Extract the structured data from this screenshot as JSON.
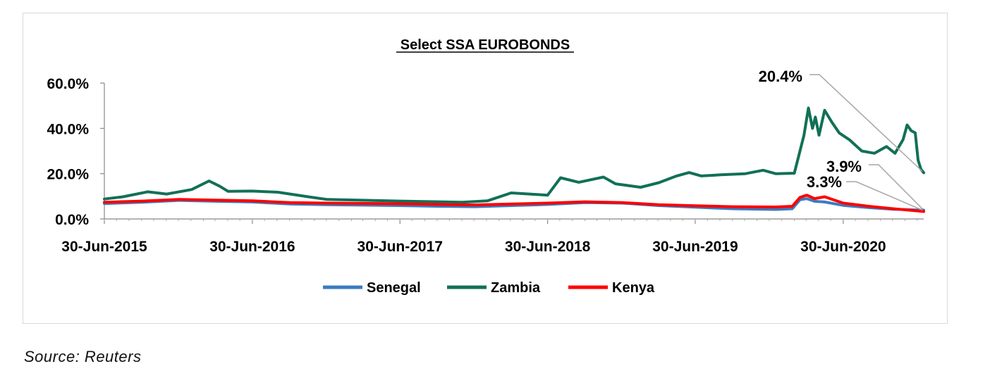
{
  "chart_data": {
    "type": "line",
    "title": "Select SSA EUROBONDS",
    "y_ticks": [
      "0.0%",
      "20.0%",
      "40.0%",
      "60.0%"
    ],
    "y_tick_values": [
      0,
      20,
      40,
      60
    ],
    "ylim": [
      0,
      60
    ],
    "x_ticks": [
      "30-Jun-2015",
      "30-Jun-2016",
      "30-Jun-2017",
      "30-Jun-2018",
      "30-Jun-2019",
      "30-Jun-2020"
    ],
    "x_tick_dates": [
      "2015-06-30",
      "2016-06-30",
      "2017-06-30",
      "2018-06-30",
      "2019-06-30",
      "2020-06-30"
    ],
    "xlim": [
      "2015-06-30",
      "2021-01-15"
    ],
    "legend_position": "bottom",
    "grid": false,
    "series": [
      {
        "name": "Senegal",
        "color": "#3a7cc0",
        "points": [
          [
            "2015-06-30",
            6.8
          ],
          [
            "2015-10-01",
            7.4
          ],
          [
            "2016-01-01",
            8.2
          ],
          [
            "2016-04-01",
            7.8
          ],
          [
            "2016-07-01",
            7.5
          ],
          [
            "2016-10-01",
            6.6
          ],
          [
            "2017-01-01",
            6.3
          ],
          [
            "2017-06-30",
            5.9
          ],
          [
            "2017-10-01",
            5.6
          ],
          [
            "2018-01-01",
            5.4
          ],
          [
            "2018-04-01",
            5.9
          ],
          [
            "2018-06-30",
            6.4
          ],
          [
            "2018-10-01",
            7.2
          ],
          [
            "2019-01-01",
            7.0
          ],
          [
            "2019-04-01",
            5.9
          ],
          [
            "2019-06-30",
            5.2
          ],
          [
            "2019-10-01",
            4.5
          ],
          [
            "2020-01-15",
            4.2
          ],
          [
            "2020-02-25",
            4.5
          ],
          [
            "2020-03-15",
            8.5
          ],
          [
            "2020-04-01",
            9.0
          ],
          [
            "2020-04-20",
            7.8
          ],
          [
            "2020-05-15",
            7.5
          ],
          [
            "2020-06-30",
            6.0
          ],
          [
            "2020-09-01",
            5.0
          ],
          [
            "2020-11-01",
            4.3
          ],
          [
            "2021-01-15",
            3.9
          ]
        ]
      },
      {
        "name": "Zambia",
        "color": "#127056",
        "points": [
          [
            "2015-06-30",
            8.8
          ],
          [
            "2015-08-15",
            9.8
          ],
          [
            "2015-10-15",
            12.0
          ],
          [
            "2015-12-01",
            11.0
          ],
          [
            "2016-02-01",
            13.0
          ],
          [
            "2016-03-15",
            16.8
          ],
          [
            "2016-04-10",
            14.5
          ],
          [
            "2016-05-01",
            12.2
          ],
          [
            "2016-06-30",
            12.3
          ],
          [
            "2016-09-01",
            11.8
          ],
          [
            "2016-11-15",
            9.8
          ],
          [
            "2017-01-01",
            8.6
          ],
          [
            "2017-06-30",
            7.9
          ],
          [
            "2017-12-01",
            7.4
          ],
          [
            "2018-02-01",
            8.0
          ],
          [
            "2018-04-01",
            11.5
          ],
          [
            "2018-06-30",
            10.5
          ],
          [
            "2018-08-01",
            18.2
          ],
          [
            "2018-09-15",
            16.2
          ],
          [
            "2018-11-15",
            18.5
          ],
          [
            "2018-12-15",
            15.5
          ],
          [
            "2019-02-15",
            14.0
          ],
          [
            "2019-04-01",
            16.0
          ],
          [
            "2019-05-15",
            19.0
          ],
          [
            "2019-06-15",
            20.5
          ],
          [
            "2019-07-15",
            19.0
          ],
          [
            "2019-09-01",
            19.5
          ],
          [
            "2019-11-01",
            20.0
          ],
          [
            "2019-12-15",
            21.5
          ],
          [
            "2020-01-15",
            20.0
          ],
          [
            "2020-03-01",
            20.2
          ],
          [
            "2020-03-15",
            30.0
          ],
          [
            "2020-03-25",
            37.0
          ],
          [
            "2020-04-05",
            49.0
          ],
          [
            "2020-04-15",
            40.0
          ],
          [
            "2020-04-22",
            45.0
          ],
          [
            "2020-05-01",
            37.0
          ],
          [
            "2020-05-15",
            48.0
          ],
          [
            "2020-06-01",
            43.0
          ],
          [
            "2020-06-20",
            38.0
          ],
          [
            "2020-07-15",
            35.0
          ],
          [
            "2020-08-15",
            30.0
          ],
          [
            "2020-09-15",
            29.0
          ],
          [
            "2020-10-15",
            32.0
          ],
          [
            "2020-11-05",
            29.0
          ],
          [
            "2020-11-25",
            35.0
          ],
          [
            "2020-12-05",
            41.5
          ],
          [
            "2020-12-15",
            39.0
          ],
          [
            "2020-12-25",
            38.0
          ],
          [
            "2021-01-01",
            26.0
          ],
          [
            "2021-01-08",
            22.0
          ],
          [
            "2021-01-15",
            20.4
          ]
        ]
      },
      {
        "name": "Kenya",
        "color": "#ff0000",
        "points": [
          [
            "2015-06-30",
            7.4
          ],
          [
            "2015-10-01",
            7.9
          ],
          [
            "2016-01-01",
            8.6
          ],
          [
            "2016-04-01",
            8.3
          ],
          [
            "2016-07-01",
            8.0
          ],
          [
            "2016-10-01",
            7.2
          ],
          [
            "2017-01-01",
            7.0
          ],
          [
            "2017-06-30",
            6.7
          ],
          [
            "2017-10-01",
            6.4
          ],
          [
            "2018-01-01",
            6.2
          ],
          [
            "2018-04-01",
            6.6
          ],
          [
            "2018-06-30",
            7.0
          ],
          [
            "2018-10-01",
            7.6
          ],
          [
            "2019-01-01",
            7.2
          ],
          [
            "2019-04-01",
            6.3
          ],
          [
            "2019-06-30",
            5.8
          ],
          [
            "2019-10-01",
            5.4
          ],
          [
            "2020-01-15",
            5.3
          ],
          [
            "2020-02-25",
            5.6
          ],
          [
            "2020-03-15",
            9.5
          ],
          [
            "2020-04-01",
            10.5
          ],
          [
            "2020-04-20",
            9.0
          ],
          [
            "2020-05-15",
            9.8
          ],
          [
            "2020-06-30",
            7.0
          ],
          [
            "2020-09-01",
            5.6
          ],
          [
            "2020-11-01",
            4.5
          ],
          [
            "2021-01-15",
            3.3
          ]
        ]
      }
    ],
    "annotations": [
      {
        "text": "20.4%",
        "series": "Zambia"
      },
      {
        "text": "3.9%",
        "series": "Senegal"
      },
      {
        "text": "3.3%",
        "series": "Kenya"
      }
    ]
  },
  "source": "Source: Reuters"
}
